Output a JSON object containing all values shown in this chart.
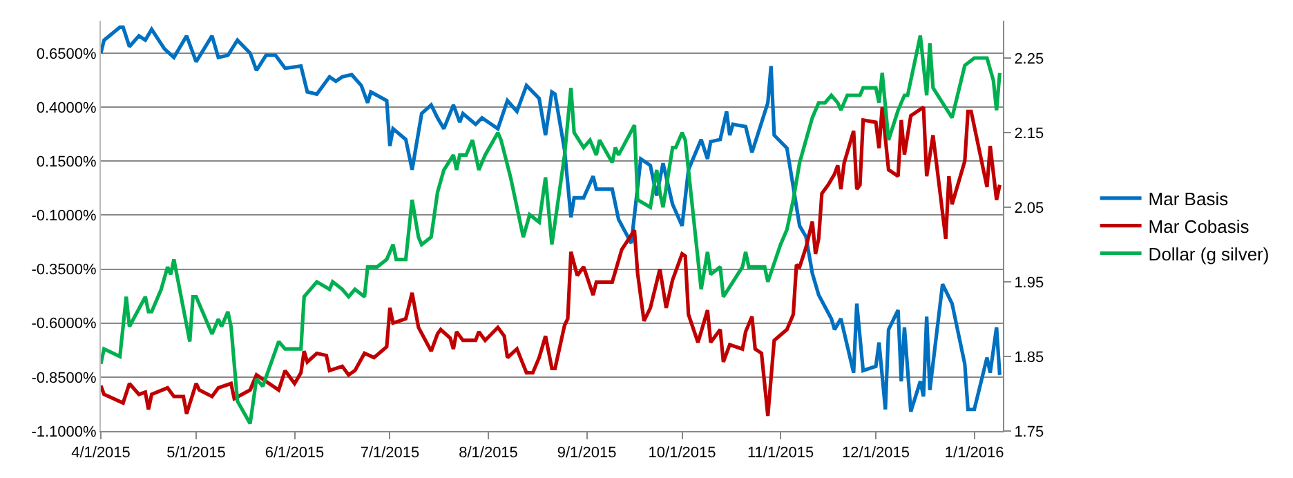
{
  "chart_data": {
    "type": "line",
    "xlim": [
      "2015-04-01",
      "2016-01-10"
    ],
    "xticks": [
      {
        "value": "2015-04-01",
        "label": "4/1/2015"
      },
      {
        "value": "2015-05-01",
        "label": "5/1/2015"
      },
      {
        "value": "2015-06-01",
        "label": "6/1/2015"
      },
      {
        "value": "2015-07-01",
        "label": "7/1/2015"
      },
      {
        "value": "2015-08-01",
        "label": "8/1/2015"
      },
      {
        "value": "2015-09-01",
        "label": "9/1/2015"
      },
      {
        "value": "2015-10-01",
        "label": "10/1/2015"
      },
      {
        "value": "2015-11-01",
        "label": "11/1/2015"
      },
      {
        "value": "2015-12-01",
        "label": "12/1/2015"
      },
      {
        "value": "2016-01-01",
        "label": "1/1/2016"
      }
    ],
    "ylim": [
      -1.1,
      0.8
    ],
    "yticks": [
      {
        "value": -1.1,
        "label": "-1.1000%"
      },
      {
        "value": -0.85,
        "label": "-0.8500%"
      },
      {
        "value": -0.6,
        "label": "-0.6000%"
      },
      {
        "value": -0.35,
        "label": "-0.3500%"
      },
      {
        "value": -0.1,
        "label": "-0.1000%"
      },
      {
        "value": 0.15,
        "label": "0.1500%"
      },
      {
        "value": 0.4,
        "label": "0.4000%"
      },
      {
        "value": 0.65,
        "label": "0.6500%"
      }
    ],
    "y2lim": [
      1.75,
      2.3
    ],
    "y2ticks": [
      1.75,
      1.85,
      1.95,
      2.05,
      2.15,
      2.25
    ],
    "grid": "y",
    "legend": "right",
    "series": [
      {
        "name": "Mar Basis",
        "color": "#0070c0",
        "x": [
          "2015-04-01",
          "2015-04-02",
          "2015-04-07",
          "2015-04-08",
          "2015-04-10",
          "2015-04-13",
          "2015-04-15",
          "2015-04-17",
          "2015-04-21",
          "2015-04-24",
          "2015-04-28",
          "2015-05-01",
          "2015-05-06",
          "2015-05-08",
          "2015-05-11",
          "2015-05-14",
          "2015-05-18",
          "2015-05-20",
          "2015-05-23",
          "2015-05-26",
          "2015-05-29",
          "2015-06-03",
          "2015-06-05",
          "2015-06-08",
          "2015-06-12",
          "2015-06-14",
          "2015-06-16",
          "2015-06-19",
          "2015-06-22",
          "2015-06-24",
          "2015-06-25",
          "2015-06-30",
          "2015-07-01",
          "2015-07-02",
          "2015-07-06",
          "2015-07-08",
          "2015-07-11",
          "2015-07-14",
          "2015-07-16",
          "2015-07-18",
          "2015-07-21",
          "2015-07-23",
          "2015-07-24",
          "2015-07-28",
          "2015-07-30",
          "2015-08-04",
          "2015-08-07",
          "2015-08-10",
          "2015-08-13",
          "2015-08-17",
          "2015-08-19",
          "2015-08-21",
          "2015-08-22",
          "2015-08-25",
          "2015-08-27",
          "2015-08-28",
          "2015-08-31",
          "2015-09-03",
          "2015-09-04",
          "2015-09-09",
          "2015-09-11",
          "2015-09-15",
          "2015-09-18",
          "2015-09-21",
          "2015-09-23",
          "2015-09-25",
          "2015-09-28",
          "2015-10-01",
          "2015-10-03",
          "2015-10-07",
          "2015-10-09",
          "2015-10-10",
          "2015-10-13",
          "2015-10-15",
          "2015-10-16",
          "2015-10-17",
          "2015-10-21",
          "2015-10-23",
          "2015-10-28",
          "2015-10-29",
          "2015-10-30",
          "2015-11-03",
          "2015-11-07",
          "2015-11-09",
          "2015-11-11",
          "2015-11-13",
          "2015-11-17",
          "2015-11-18",
          "2015-11-20",
          "2015-11-24",
          "2015-11-25",
          "2015-11-27",
          "2015-12-01",
          "2015-12-02",
          "2015-12-04",
          "2015-12-05",
          "2015-12-08",
          "2015-12-09",
          "2015-12-10",
          "2015-12-12",
          "2015-12-15",
          "2015-12-16",
          "2015-12-17",
          "2015-12-18",
          "2015-12-22",
          "2015-12-25",
          "2015-12-29",
          "2015-12-30",
          "2016-01-01",
          "2016-01-05",
          "2016-01-06",
          "2016-01-08",
          "2016-01-09"
        ],
        "values": [
          0.65,
          0.71,
          0.77,
          0.77,
          0.68,
          0.73,
          0.71,
          0.76,
          0.67,
          0.63,
          0.73,
          0.61,
          0.73,
          0.63,
          0.64,
          0.71,
          0.65,
          0.57,
          0.64,
          0.64,
          0.58,
          0.59,
          0.47,
          0.46,
          0.54,
          0.52,
          0.54,
          0.55,
          0.5,
          0.42,
          0.47,
          0.43,
          0.22,
          0.3,
          0.25,
          0.11,
          0.37,
          0.41,
          0.35,
          0.3,
          0.41,
          0.33,
          0.37,
          0.32,
          0.35,
          0.3,
          0.43,
          0.38,
          0.5,
          0.44,
          0.27,
          0.47,
          0.46,
          0.2,
          -0.11,
          -0.02,
          -0.02,
          0.08,
          0.02,
          0.02,
          -0.12,
          -0.23,
          0.16,
          0.13,
          -0.01,
          0.14,
          -0.05,
          -0.15,
          0.11,
          0.25,
          0.16,
          0.24,
          0.25,
          0.38,
          0.27,
          0.32,
          0.31,
          0.19,
          0.42,
          0.59,
          0.27,
          0.21,
          -0.15,
          -0.2,
          -0.37,
          -0.47,
          -0.58,
          -0.63,
          -0.58,
          -0.83,
          -0.51,
          -0.82,
          -0.8,
          -0.69,
          -1.0,
          -0.63,
          -0.54,
          -0.87,
          -0.62,
          -1.01,
          -0.87,
          -0.94,
          -0.57,
          -0.91,
          -0.42,
          -0.51,
          -0.79,
          -1.0,
          -1.0,
          -0.76,
          -0.83,
          -0.62,
          -0.84
        ]
      },
      {
        "name": "Mar Cobasis",
        "color": "#c00000",
        "x": [
          "2015-04-01",
          "2015-04-02",
          "2015-04-08",
          "2015-04-10",
          "2015-04-13",
          "2015-04-15",
          "2015-04-16",
          "2015-04-17",
          "2015-04-22",
          "2015-04-24",
          "2015-04-27",
          "2015-04-28",
          "2015-05-01",
          "2015-05-02",
          "2015-05-06",
          "2015-05-08",
          "2015-05-12",
          "2015-05-13",
          "2015-05-18",
          "2015-05-20",
          "2015-05-23",
          "2015-05-27",
          "2015-05-29",
          "2015-06-01",
          "2015-06-03",
          "2015-06-04",
          "2015-06-05",
          "2015-06-08",
          "2015-06-11",
          "2015-06-12",
          "2015-06-16",
          "2015-06-18",
          "2015-06-20",
          "2015-06-23",
          "2015-06-26",
          "2015-06-30",
          "2015-07-01",
          "2015-07-02",
          "2015-07-06",
          "2015-07-08",
          "2015-07-10",
          "2015-07-14",
          "2015-07-16",
          "2015-07-17",
          "2015-07-20",
          "2015-07-21",
          "2015-07-22",
          "2015-07-24",
          "2015-07-28",
          "2015-07-29",
          "2015-07-31",
          "2015-08-04",
          "2015-08-06",
          "2015-08-07",
          "2015-08-10",
          "2015-08-13",
          "2015-08-15",
          "2015-08-17",
          "2015-08-19",
          "2015-08-21",
          "2015-08-22",
          "2015-08-25",
          "2015-08-26",
          "2015-08-27",
          "2015-08-29",
          "2015-08-31",
          "2015-09-03",
          "2015-09-04",
          "2015-09-09",
          "2015-09-12",
          "2015-09-16",
          "2015-09-17",
          "2015-09-19",
          "2015-09-21",
          "2015-09-24",
          "2015-09-26",
          "2015-09-28",
          "2015-10-01",
          "2015-10-02",
          "2015-10-03",
          "2015-10-06",
          "2015-10-07",
          "2015-10-09",
          "2015-10-10",
          "2015-10-13",
          "2015-10-14",
          "2015-10-16",
          "2015-10-20",
          "2015-10-21",
          "2015-10-23",
          "2015-10-24",
          "2015-10-26",
          "2015-10-28",
          "2015-10-30",
          "2015-11-03",
          "2015-11-05",
          "2015-11-06",
          "2015-11-07",
          "2015-11-09",
          "2015-11-11",
          "2015-11-12",
          "2015-11-13",
          "2015-11-14",
          "2015-11-16",
          "2015-11-18",
          "2015-11-19",
          "2015-11-20",
          "2015-11-21",
          "2015-11-24",
          "2015-11-25",
          "2015-11-26",
          "2015-11-27",
          "2015-12-01",
          "2015-12-02",
          "2015-12-03",
          "2015-12-05",
          "2015-12-08",
          "2015-12-09",
          "2015-12-10",
          "2015-12-12",
          "2015-12-16",
          "2015-12-17",
          "2015-12-19",
          "2015-12-23",
          "2015-12-24",
          "2015-12-25",
          "2015-12-29",
          "2015-12-30",
          "2015-12-31",
          "2016-01-05",
          "2016-01-06",
          "2016-01-08",
          "2016-01-09"
        ],
        "values": [
          -0.89,
          -0.93,
          -0.97,
          -0.88,
          -0.93,
          -0.92,
          -1.0,
          -0.93,
          -0.9,
          -0.94,
          -0.94,
          -1.02,
          -0.88,
          -0.91,
          -0.94,
          -0.9,
          -0.88,
          -0.95,
          -0.91,
          -0.84,
          -0.87,
          -0.91,
          -0.82,
          -0.88,
          -0.83,
          -0.73,
          -0.78,
          -0.74,
          -0.75,
          -0.82,
          -0.8,
          -0.84,
          -0.82,
          -0.74,
          -0.76,
          -0.71,
          -0.53,
          -0.6,
          -0.58,
          -0.46,
          -0.62,
          -0.73,
          -0.65,
          -0.63,
          -0.67,
          -0.72,
          -0.64,
          -0.68,
          -0.68,
          -0.64,
          -0.68,
          -0.62,
          -0.66,
          -0.76,
          -0.72,
          -0.83,
          -0.83,
          -0.76,
          -0.66,
          -0.81,
          -0.81,
          -0.61,
          -0.58,
          -0.27,
          -0.38,
          -0.34,
          -0.47,
          -0.41,
          -0.41,
          -0.26,
          -0.17,
          -0.37,
          -0.59,
          -0.53,
          -0.35,
          -0.53,
          -0.4,
          -0.28,
          -0.29,
          -0.56,
          -0.69,
          -0.64,
          -0.54,
          -0.69,
          -0.63,
          -0.78,
          -0.7,
          -0.72,
          -0.64,
          -0.57,
          -0.72,
          -0.74,
          -1.03,
          -0.68,
          -0.63,
          -0.56,
          -0.33,
          -0.34,
          -0.25,
          -0.13,
          -0.28,
          -0.21,
          0.0,
          0.04,
          0.09,
          0.13,
          0.02,
          0.14,
          0.29,
          0.02,
          0.04,
          0.34,
          0.33,
          0.21,
          0.4,
          0.11,
          0.08,
          0.34,
          0.18,
          0.36,
          0.4,
          0.08,
          0.27,
          -0.21,
          0.08,
          -0.05,
          0.15,
          0.38,
          0.38,
          0.03,
          0.22,
          -0.03,
          0.04
        ]
      },
      {
        "name": "Dollar (g silver)",
        "color": "#00b050",
        "axis": "y2",
        "x": [
          "2015-04-01",
          "2015-04-02",
          "2015-04-07",
          "2015-04-09",
          "2015-04-10",
          "2015-04-15",
          "2015-04-16",
          "2015-04-17",
          "2015-04-20",
          "2015-04-22",
          "2015-04-23",
          "2015-04-24",
          "2015-04-29",
          "2015-04-30",
          "2015-05-01",
          "2015-05-06",
          "2015-05-08",
          "2015-05-09",
          "2015-05-11",
          "2015-05-12",
          "2015-05-14",
          "2015-05-18",
          "2015-05-20",
          "2015-05-22",
          "2015-05-27",
          "2015-05-29",
          "2015-06-03",
          "2015-06-04",
          "2015-06-08",
          "2015-06-12",
          "2015-06-13",
          "2015-06-16",
          "2015-06-18",
          "2015-06-20",
          "2015-06-23",
          "2015-06-24",
          "2015-06-27",
          "2015-06-30",
          "2015-07-02",
          "2015-07-03",
          "2015-07-06",
          "2015-07-08",
          "2015-07-10",
          "2015-07-11",
          "2015-07-14",
          "2015-07-16",
          "2015-07-18",
          "2015-07-21",
          "2015-07-22",
          "2015-07-23",
          "2015-07-25",
          "2015-07-27",
          "2015-07-29",
          "2015-07-31",
          "2015-08-04",
          "2015-08-05",
          "2015-08-08",
          "2015-08-12",
          "2015-08-14",
          "2015-08-17",
          "2015-08-19",
          "2015-08-21",
          "2015-08-25",
          "2015-08-27",
          "2015-08-28",
          "2015-08-31",
          "2015-09-02",
          "2015-09-04",
          "2015-09-05",
          "2015-09-09",
          "2015-09-10",
          "2015-09-11",
          "2015-09-16",
          "2015-09-17",
          "2015-09-21",
          "2015-09-23",
          "2015-09-24",
          "2015-09-25",
          "2015-09-28",
          "2015-09-29",
          "2015-10-01",
          "2015-10-02",
          "2015-10-07",
          "2015-10-09",
          "2015-10-10",
          "2015-10-13",
          "2015-10-14",
          "2015-10-20",
          "2015-10-21",
          "2015-10-22",
          "2015-10-27",
          "2015-10-28",
          "2015-11-01",
          "2015-11-03",
          "2015-11-05",
          "2015-11-07",
          "2015-11-09",
          "2015-11-11",
          "2015-11-13",
          "2015-11-15",
          "2015-11-17",
          "2015-11-19",
          "2015-11-20",
          "2015-11-22",
          "2015-11-24",
          "2015-11-26",
          "2015-11-27",
          "2015-12-01",
          "2015-12-02",
          "2015-12-03",
          "2015-12-05",
          "2015-12-08",
          "2015-12-10",
          "2015-12-11",
          "2015-12-15",
          "2015-12-17",
          "2015-12-18",
          "2015-12-19",
          "2015-12-22",
          "2015-12-25",
          "2015-12-29",
          "2016-01-01",
          "2016-01-05",
          "2016-01-07",
          "2016-01-08",
          "2016-01-09"
        ],
        "values": [
          1.84,
          1.86,
          1.85,
          1.93,
          1.89,
          1.93,
          1.91,
          1.91,
          1.94,
          1.97,
          1.96,
          1.98,
          1.87,
          1.93,
          1.93,
          1.88,
          1.9,
          1.89,
          1.91,
          1.89,
          1.79,
          1.76,
          1.82,
          1.81,
          1.87,
          1.86,
          1.86,
          1.93,
          1.95,
          1.94,
          1.95,
          1.94,
          1.93,
          1.94,
          1.93,
          1.97,
          1.97,
          1.98,
          2.0,
          1.98,
          1.98,
          2.06,
          2.01,
          2.0,
          2.01,
          2.07,
          2.1,
          2.12,
          2.1,
          2.12,
          2.12,
          2.14,
          2.1,
          2.12,
          2.15,
          2.14,
          2.09,
          2.01,
          2.04,
          2.03,
          2.09,
          2.0,
          2.12,
          2.21,
          2.15,
          2.13,
          2.14,
          2.12,
          2.14,
          2.11,
          2.13,
          2.12,
          2.16,
          2.06,
          2.05,
          2.1,
          2.07,
          2.05,
          2.13,
          2.13,
          2.15,
          2.14,
          1.94,
          1.99,
          1.96,
          1.97,
          1.93,
          1.97,
          1.99,
          1.97,
          1.97,
          1.95,
          2.0,
          2.02,
          2.06,
          2.11,
          2.14,
          2.17,
          2.19,
          2.19,
          2.2,
          2.19,
          2.18,
          2.2,
          2.2,
          2.2,
          2.21,
          2.21,
          2.19,
          2.23,
          2.14,
          2.18,
          2.2,
          2.2,
          2.28,
          2.2,
          2.27,
          2.21,
          2.19,
          2.17,
          2.24,
          2.25,
          2.25,
          2.22,
          2.18,
          2.23
        ]
      }
    ]
  }
}
